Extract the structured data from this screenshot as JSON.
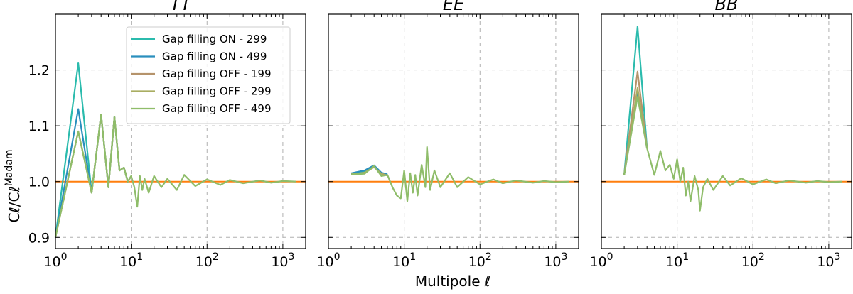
{
  "chart_data": {
    "type": "line",
    "xscale": "log",
    "xlim": [
      1,
      2000
    ],
    "ylim": [
      0.88,
      1.3
    ],
    "xlabel": "Multipole ℓ",
    "ylabel": "C_ℓ/C_ℓ^Madam",
    "ylabel_main": "Cℓ/Cℓ",
    "ylabel_sup": "Madam",
    "x_ticks": [
      1,
      10,
      100,
      1000
    ],
    "x_tick_labels": [
      {
        "base": "10",
        "exp": "0"
      },
      {
        "base": "10",
        "exp": "1"
      },
      {
        "base": "10",
        "exp": "2"
      },
      {
        "base": "10",
        "exp": "3"
      }
    ],
    "y_ticks": [
      0.9,
      1.0,
      1.1,
      1.2
    ],
    "y_tick_labels": [
      "0.9",
      "1.0",
      "1.1",
      "1.2"
    ],
    "grid": true,
    "reference_line": {
      "y": 1.0,
      "color": "#ff7f0e"
    },
    "legend": {
      "placement": "top-right",
      "entries": [
        {
          "name": "Gap filling ON - 299",
          "color": "#2bbbad"
        },
        {
          "name": "Gap filling ON - 499",
          "color": "#2a8fbd"
        },
        {
          "name": "Gap filling OFF - 199",
          "color": "#b5936b"
        },
        {
          "name": "Gap filling OFF - 299",
          "color": "#a9ad62"
        },
        {
          "name": "Gap filling OFF - 499",
          "color": "#8fbd6a"
        }
      ]
    },
    "panels": [
      {
        "title": "TT",
        "series": [
          {
            "name": "Gap filling ON - 299",
            "color": "#2bbbad",
            "x": [
              1,
              2,
              3,
              4,
              5,
              6,
              7,
              8,
              9,
              10
            ],
            "y": [
              0.9,
              1.212,
              0.98,
              1.12,
              0.99,
              1.116,
              1.02,
              1.025,
              1.0,
              1.01
            ]
          },
          {
            "name": "Gap filling ON - 499",
            "color": "#2a8fbd",
            "x": [
              1,
              2,
              3,
              4,
              5,
              6,
              7,
              8,
              9,
              10
            ],
            "y": [
              0.9,
              1.13,
              0.98,
              1.12,
              0.99,
              1.116,
              1.02,
              1.025,
              1.0,
              1.01
            ]
          },
          {
            "name": "Gap filling OFF - 199",
            "color": "#b5936b",
            "x": [
              1,
              2,
              3,
              4,
              5,
              6,
              7,
              8,
              9,
              10
            ],
            "y": [
              0.9,
              1.09,
              0.98,
              1.12,
              0.99,
              1.116,
              1.02,
              1.025,
              1.0,
              1.01
            ]
          },
          {
            "name": "Gap filling OFF - 299",
            "color": "#a9ad62",
            "x": [
              1,
              2,
              3,
              4,
              5,
              6,
              7,
              8,
              9,
              10
            ],
            "y": [
              0.9,
              1.09,
              0.98,
              1.12,
              0.99,
              1.116,
              1.02,
              1.025,
              1.0,
              1.01
            ]
          },
          {
            "name": "Gap filling OFF - 499",
            "color": "#8fbd6a",
            "x": [
              1,
              2,
              3,
              4,
              5,
              6,
              7,
              8,
              9,
              10,
              11,
              12,
              13,
              14,
              15,
              17,
              20,
              25,
              30,
              40,
              50,
              70,
              100,
              150,
              200,
              300,
              500,
              700,
              1000,
              1500
            ],
            "y": [
              0.9,
              1.09,
              0.98,
              1.12,
              0.99,
              1.116,
              1.02,
              1.025,
              1.0,
              1.01,
              0.99,
              0.955,
              1.01,
              0.985,
              1.005,
              0.98,
              1.01,
              0.99,
              1.005,
              0.985,
              1.012,
              0.992,
              1.004,
              0.994,
              1.003,
              0.997,
              1.002,
              0.998,
              1.001,
              1.0
            ]
          }
        ]
      },
      {
        "title": "EE",
        "series": [
          {
            "name": "Gap filling ON - 299",
            "color": "#2bbbad",
            "x": [
              2,
              3,
              4,
              5,
              6
            ],
            "y": [
              1.014,
              1.018,
              1.027,
              1.015,
              1.012
            ]
          },
          {
            "name": "Gap filling ON - 499",
            "color": "#2a8fbd",
            "x": [
              2,
              3,
              4,
              5,
              6
            ],
            "y": [
              1.015,
              1.02,
              1.029,
              1.016,
              1.013
            ]
          },
          {
            "name": "Gap filling OFF - 199",
            "color": "#b5936b",
            "x": [
              2,
              3,
              4,
              5,
              6
            ],
            "y": [
              1.013,
              1.016,
              1.026,
              1.014,
              1.011
            ]
          },
          {
            "name": "Gap filling OFF - 299",
            "color": "#a9ad62",
            "x": [
              2,
              3,
              4,
              5,
              6
            ],
            "y": [
              1.013,
              1.016,
              1.026,
              1.014,
              1.011
            ]
          },
          {
            "name": "Gap filling OFF - 499",
            "color": "#8fbd6a",
            "x": [
              2,
              3,
              4,
              5,
              6,
              7,
              8,
              9,
              10,
              11,
              12,
              13,
              14,
              15,
              17,
              19,
              20,
              22,
              25,
              30,
              40,
              50,
              70,
              100,
              150,
              200,
              300,
              500,
              700,
              1000,
              1500
            ],
            "y": [
              1.013,
              1.014,
              1.028,
              1.01,
              1.012,
              0.99,
              0.975,
              0.97,
              1.02,
              0.965,
              1.015,
              0.98,
              1.012,
              0.975,
              1.03,
              0.99,
              1.062,
              0.985,
              1.02,
              0.99,
              1.015,
              0.99,
              1.008,
              0.995,
              1.004,
              0.997,
              1.002,
              0.998,
              1.001,
              0.999,
              1.0
            ]
          }
        ]
      },
      {
        "title": "BB",
        "series": [
          {
            "name": "Gap filling ON - 299",
            "color": "#2bbbad",
            "x": [
              2,
              3,
              4
            ],
            "y": [
              1.012,
              1.278,
              1.06
            ]
          },
          {
            "name": "Gap filling ON - 499",
            "color": "#2a8fbd",
            "x": [
              2,
              3,
              4
            ],
            "y": [
              1.012,
              1.16,
              1.06
            ]
          },
          {
            "name": "Gap filling OFF - 199",
            "color": "#b5936b",
            "x": [
              2,
              3,
              4
            ],
            "y": [
              1.012,
              1.197,
              1.06
            ]
          },
          {
            "name": "Gap filling OFF - 299",
            "color": "#a9ad62",
            "x": [
              2,
              3,
              4
            ],
            "y": [
              1.012,
              1.168,
              1.06
            ]
          },
          {
            "name": "Gap filling OFF - 499",
            "color": "#8fbd6a",
            "x": [
              2,
              3,
              4,
              5,
              6,
              7,
              8,
              9,
              10,
              11,
              12,
              13,
              14,
              15,
              17,
              19,
              20,
              22,
              25,
              30,
              40,
              50,
              70,
              100,
              150,
              200,
              300,
              500,
              700,
              1000,
              1500
            ],
            "y": [
              1.012,
              1.152,
              1.06,
              1.012,
              1.055,
              1.02,
              1.03,
              1.005,
              1.04,
              1.0,
              1.025,
              0.975,
              1.0,
              0.965,
              1.01,
              0.985,
              0.948,
              0.99,
              1.005,
              0.985,
              1.01,
              0.993,
              1.006,
              0.995,
              1.004,
              0.997,
              1.002,
              0.998,
              1.001,
              0.999,
              1.0
            ]
          }
        ]
      }
    ]
  }
}
